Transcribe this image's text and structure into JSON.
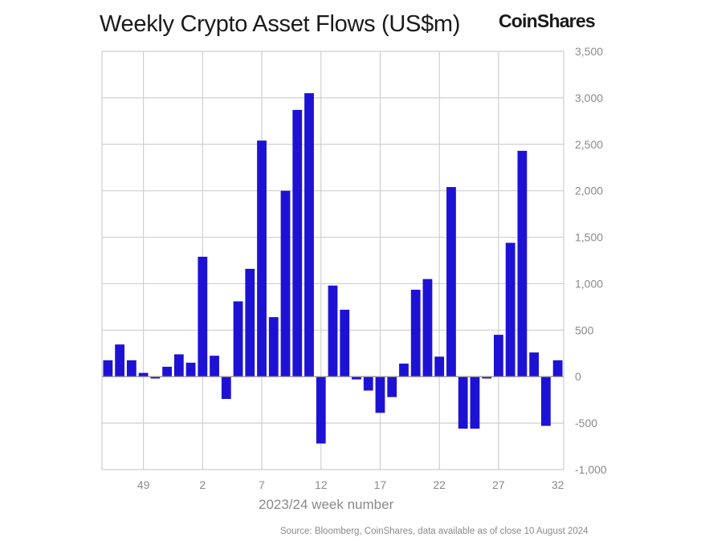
{
  "header": {
    "title": "Weekly Crypto Asset Flows (US$m)",
    "brand": "CoinShares"
  },
  "footer": {
    "source": "Source: Bloomberg, CoinShares, data available as of close 10 August 2024"
  },
  "chart_data": {
    "type": "bar",
    "title": "Weekly Crypto Asset Flows (US$m)",
    "xlabel": "2023/24 week number",
    "ylabel": "",
    "ylim": [
      -1000,
      3500
    ],
    "yticks": [
      -1000,
      -500,
      0,
      500,
      1000,
      1500,
      2000,
      2500,
      3000,
      3500
    ],
    "ytick_labels": [
      "-1,000",
      "-500",
      "0",
      "500",
      "1,000",
      "1,500",
      "2,000",
      "2,500",
      "3,000",
      "3,500"
    ],
    "xtick_labels": [
      {
        "label": "49",
        "index": 3
      },
      {
        "label": "2",
        "index": 8
      },
      {
        "label": "7",
        "index": 13
      },
      {
        "label": "12",
        "index": 18
      },
      {
        "label": "17",
        "index": 23
      },
      {
        "label": "22",
        "index": 28
      },
      {
        "label": "27",
        "index": 33
      },
      {
        "label": "32",
        "index": 38
      }
    ],
    "grid": true,
    "bar_color": "#1d12d4",
    "categories": [
      "46",
      "47",
      "48",
      "49",
      "50",
      "51",
      "52",
      "1",
      "2",
      "3",
      "4",
      "5",
      "6",
      "7",
      "8",
      "9",
      "10",
      "11",
      "12",
      "13",
      "14",
      "15",
      "16",
      "17",
      "18",
      "19",
      "20",
      "21",
      "22",
      "23",
      "24",
      "25",
      "26",
      "27",
      "28",
      "29",
      "30",
      "31",
      "32"
    ],
    "values": [
      176,
      346,
      176,
      40,
      -20,
      106,
      240,
      150,
      1290,
      225,
      -240,
      810,
      1160,
      2540,
      640,
      2000,
      2870,
      3050,
      -720,
      980,
      720,
      -30,
      -150,
      -390,
      -220,
      140,
      935,
      1050,
      215,
      2040,
      -560,
      -560,
      -20,
      450,
      1440,
      2430,
      260,
      -530,
      176
    ]
  }
}
